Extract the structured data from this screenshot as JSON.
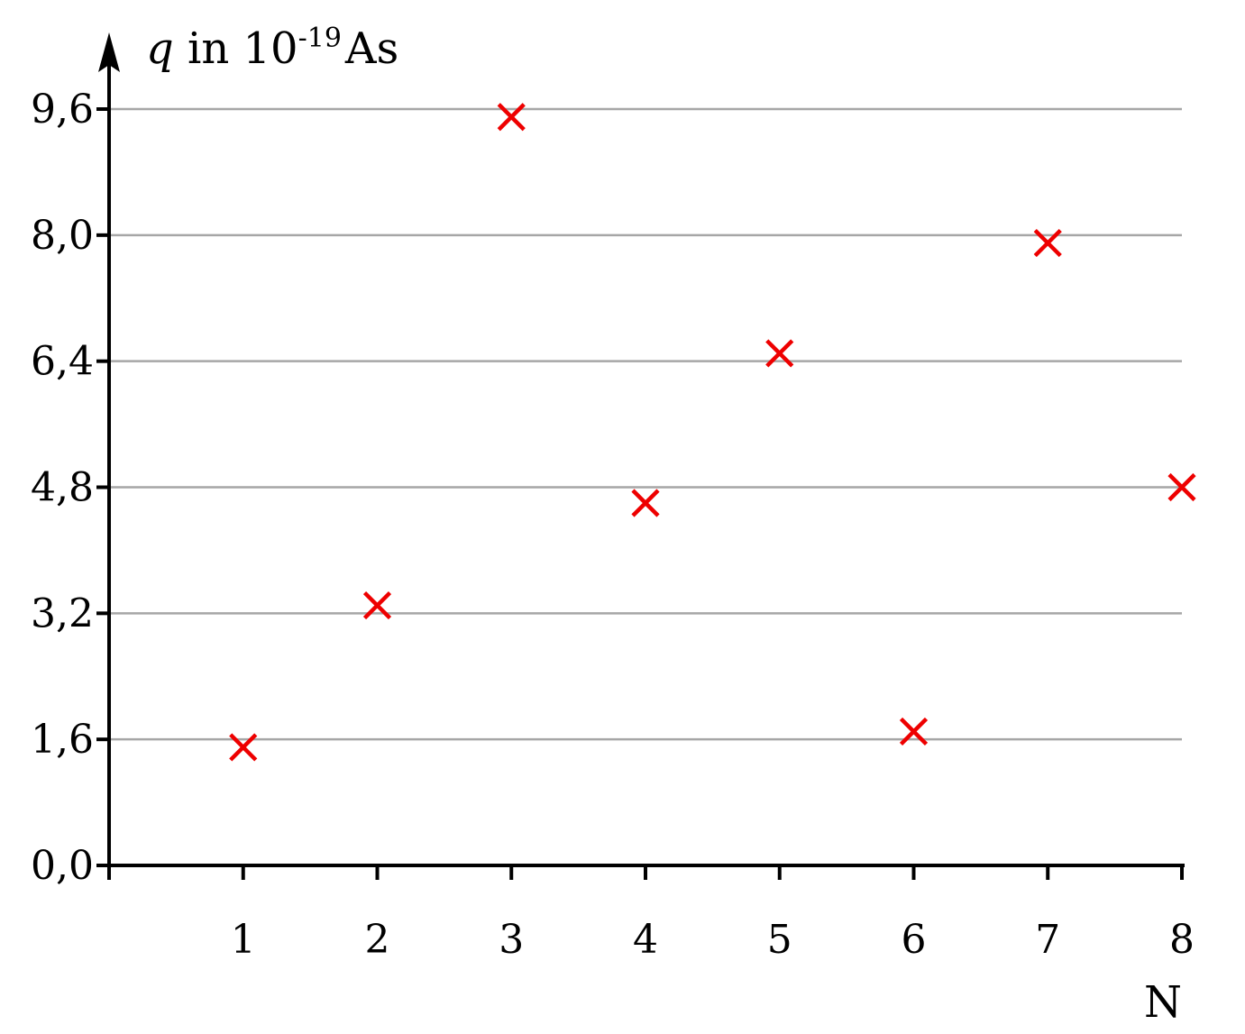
{
  "chart_data": {
    "type": "scatter",
    "ylabel": {
      "var": "q",
      "pre": " in 10",
      "exp": "-19",
      "unit": "As"
    },
    "xlabel": "N",
    "x_ticks": [
      "1",
      "2",
      "3",
      "4",
      "5",
      "6",
      "7",
      "8"
    ],
    "y_ticks": [
      "0,0",
      "1,6",
      "3,2",
      "4,8",
      "6,4",
      "8,0",
      "9,6"
    ],
    "y_tick_values": [
      0,
      1.6,
      3.2,
      4.8,
      6.4,
      8.0,
      9.6
    ],
    "xlim": [
      0,
      8
    ],
    "ylim": [
      0,
      9.6
    ],
    "grid": "horizontal",
    "marker": "x",
    "points": [
      {
        "x": 1,
        "y": 1.5
      },
      {
        "x": 2,
        "y": 3.3
      },
      {
        "x": 3,
        "y": 9.5
      },
      {
        "x": 4,
        "y": 4.6
      },
      {
        "x": 5,
        "y": 6.5
      },
      {
        "x": 6,
        "y": 1.7
      },
      {
        "x": 7,
        "y": 7.9
      },
      {
        "x": 8,
        "y": 4.8
      }
    ],
    "colors": {
      "marker": "#ee0000",
      "grid": "#a6a6a6",
      "axis": "#000000"
    }
  }
}
